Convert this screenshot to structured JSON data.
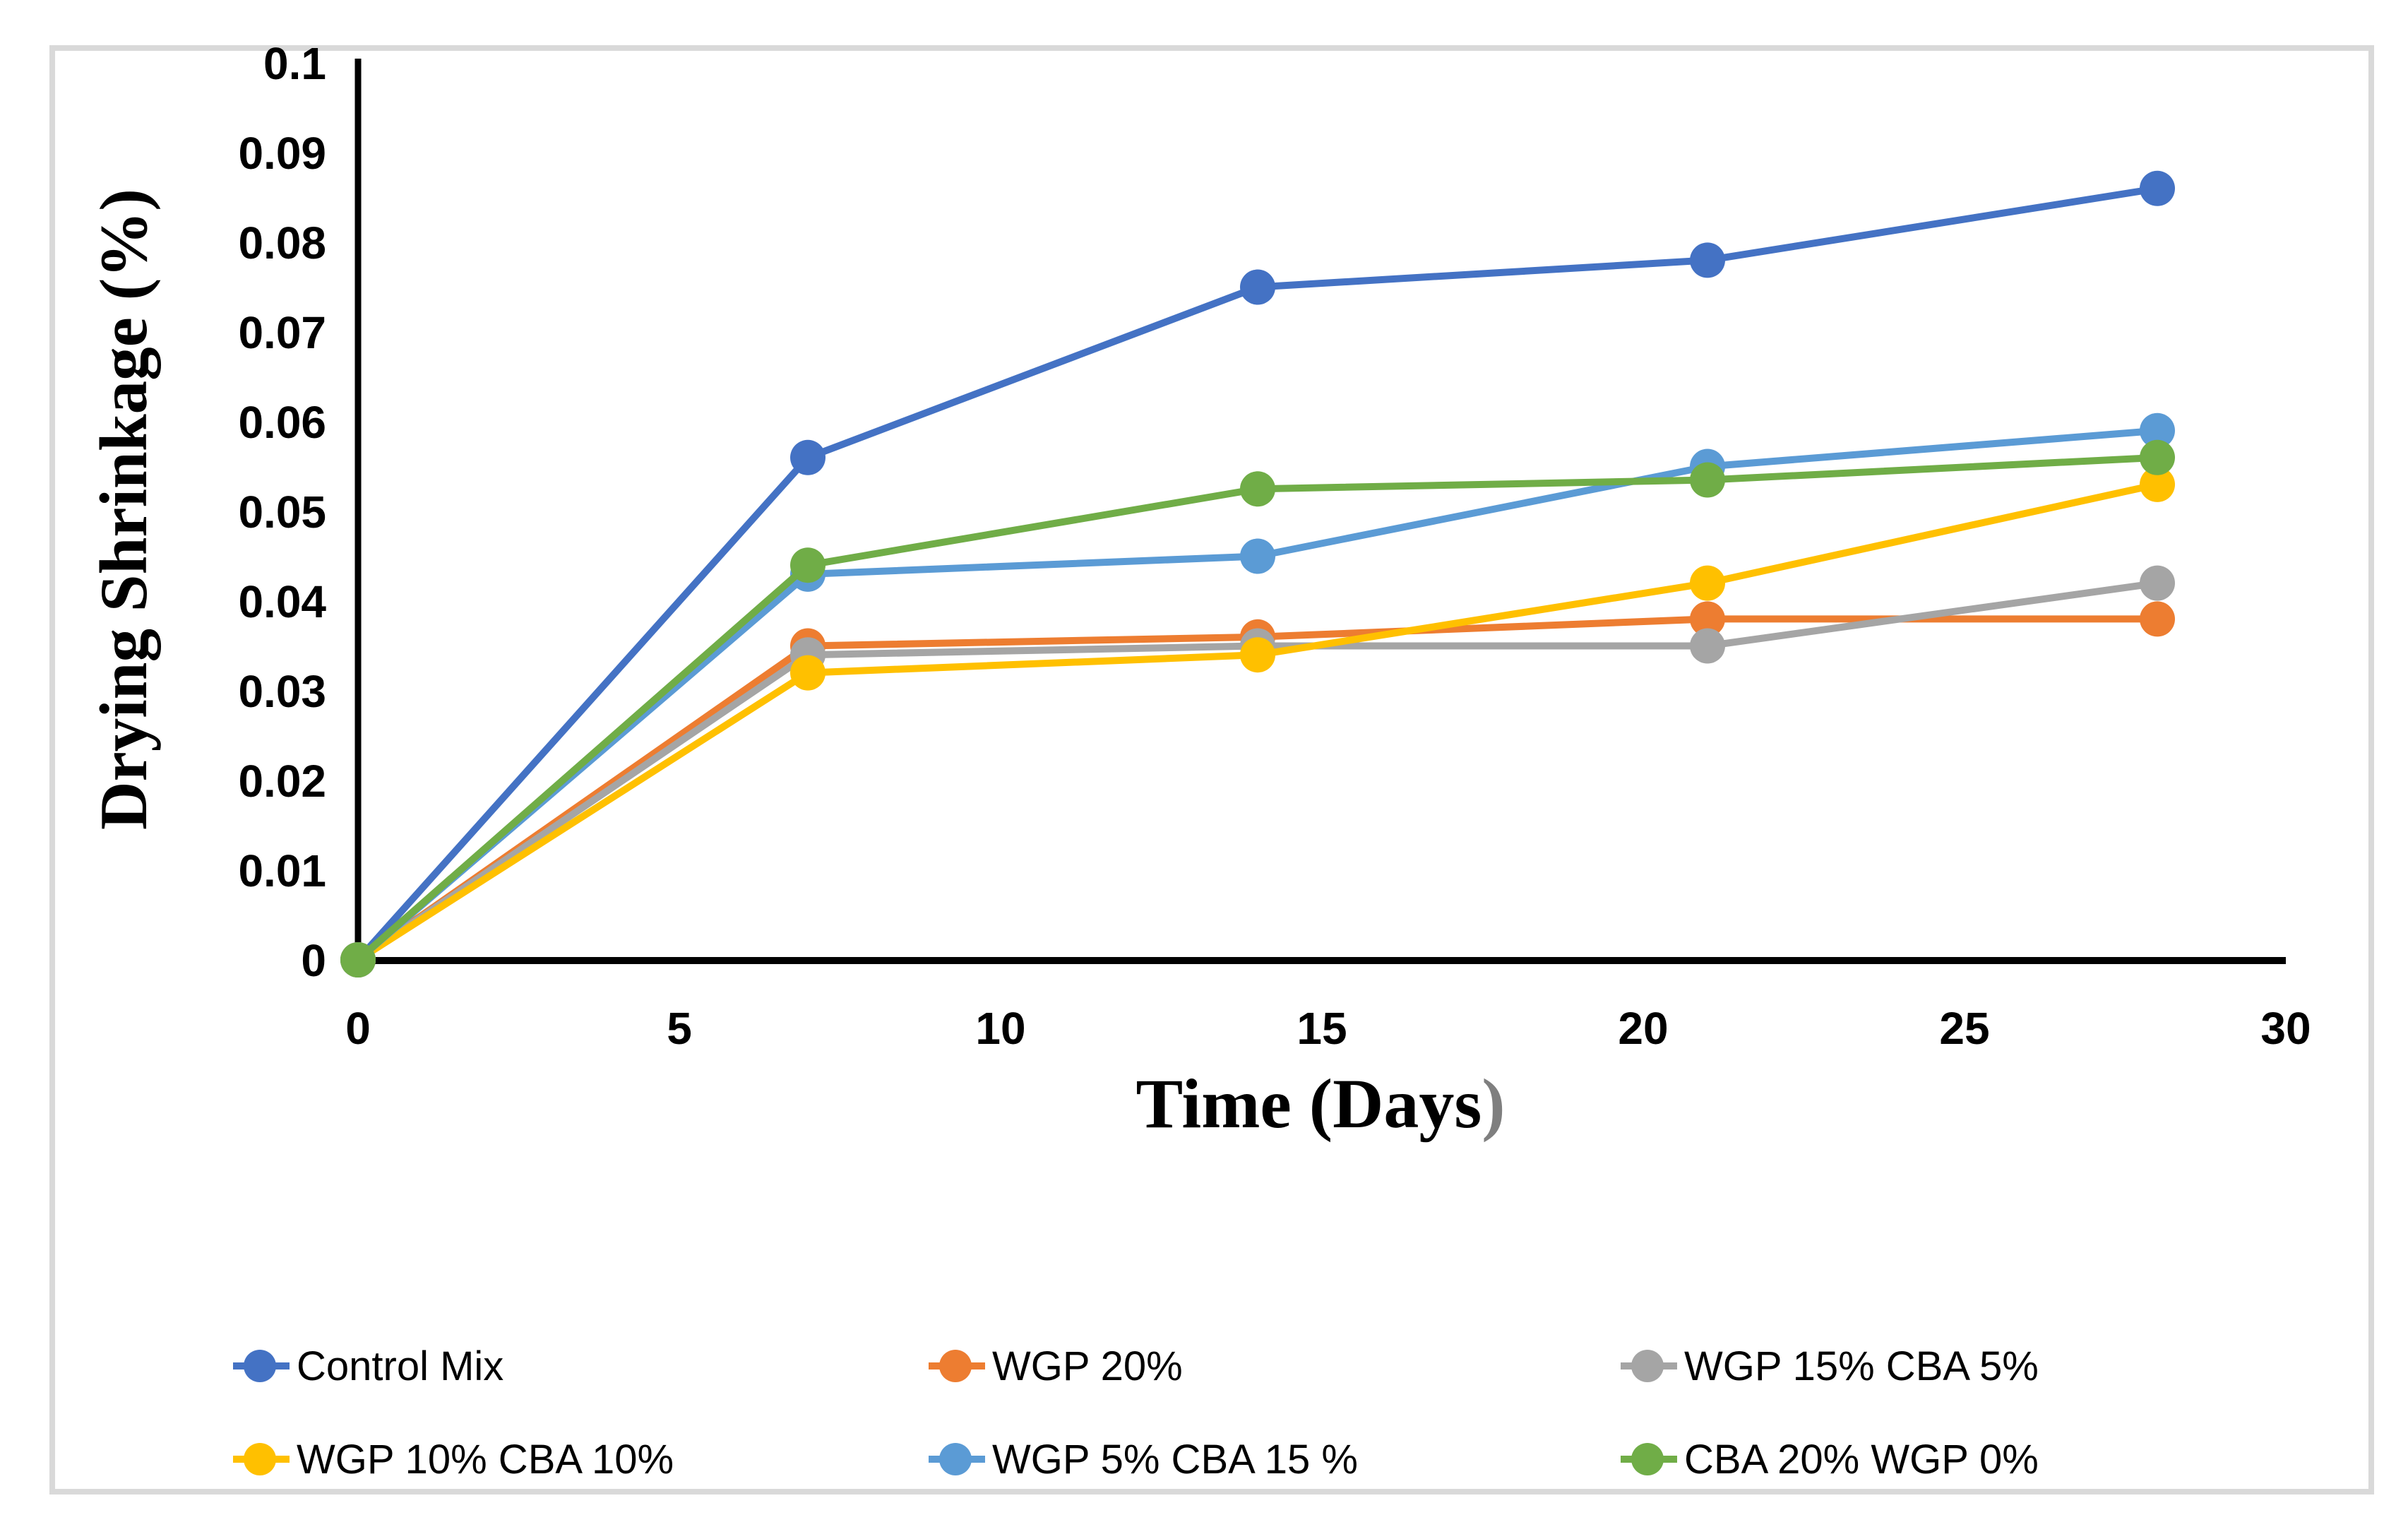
{
  "figure": {
    "y_axis": {
      "title": "Drying Shrinkage (%)",
      "tick_labels": [
        "0",
        "0.01",
        "0.02",
        "0.03",
        "0.04",
        "0.05",
        "0.06",
        "0.07",
        "0.08",
        "0.09",
        "0.1"
      ]
    },
    "x_axis": {
      "title_main": "Time (Days",
      "title_paren": ")",
      "tick_labels": [
        "0",
        "5",
        "10",
        "15",
        "20",
        "25",
        "30"
      ]
    }
  },
  "chart_data": {
    "type": "line",
    "x": [
      0,
      7,
      14,
      21,
      28
    ],
    "xlabel": "Time (Days)",
    "ylabel": "Drying Shrinkage (%)",
    "xlim": [
      0,
      30
    ],
    "ylim": [
      0,
      0.1
    ],
    "x_tick_step": 5,
    "y_tick_step": 0.01,
    "grid": false,
    "legend_position": "bottom",
    "marker": "circle",
    "series": [
      {
        "name": "Control Mix",
        "color": "#4472C4",
        "values": [
          0,
          0.056,
          0.075,
          0.078,
          0.086
        ]
      },
      {
        "name": "WGP 20%",
        "color": "#ED7D31",
        "values": [
          0,
          0.035,
          0.036,
          0.038,
          0.038
        ]
      },
      {
        "name": "WGP 15% CBA 5%",
        "color": "#A5A5A5",
        "values": [
          0,
          0.034,
          0.035,
          0.035,
          0.042
        ]
      },
      {
        "name": "WGP 10% CBA 10%",
        "color": "#FFC000",
        "values": [
          0,
          0.032,
          0.034,
          0.042,
          0.053
        ]
      },
      {
        "name": "WGP 5% CBA 15 %",
        "color": "#5B9BD5",
        "values": [
          0,
          0.043,
          0.045,
          0.055,
          0.059
        ]
      },
      {
        "name": "CBA 20% WGP 0%",
        "color": "#70AD47",
        "values": [
          0,
          0.044,
          0.0525,
          0.0535,
          0.056
        ]
      }
    ],
    "axis_color": "#000000",
    "frame_color": "#d9d9d9"
  }
}
